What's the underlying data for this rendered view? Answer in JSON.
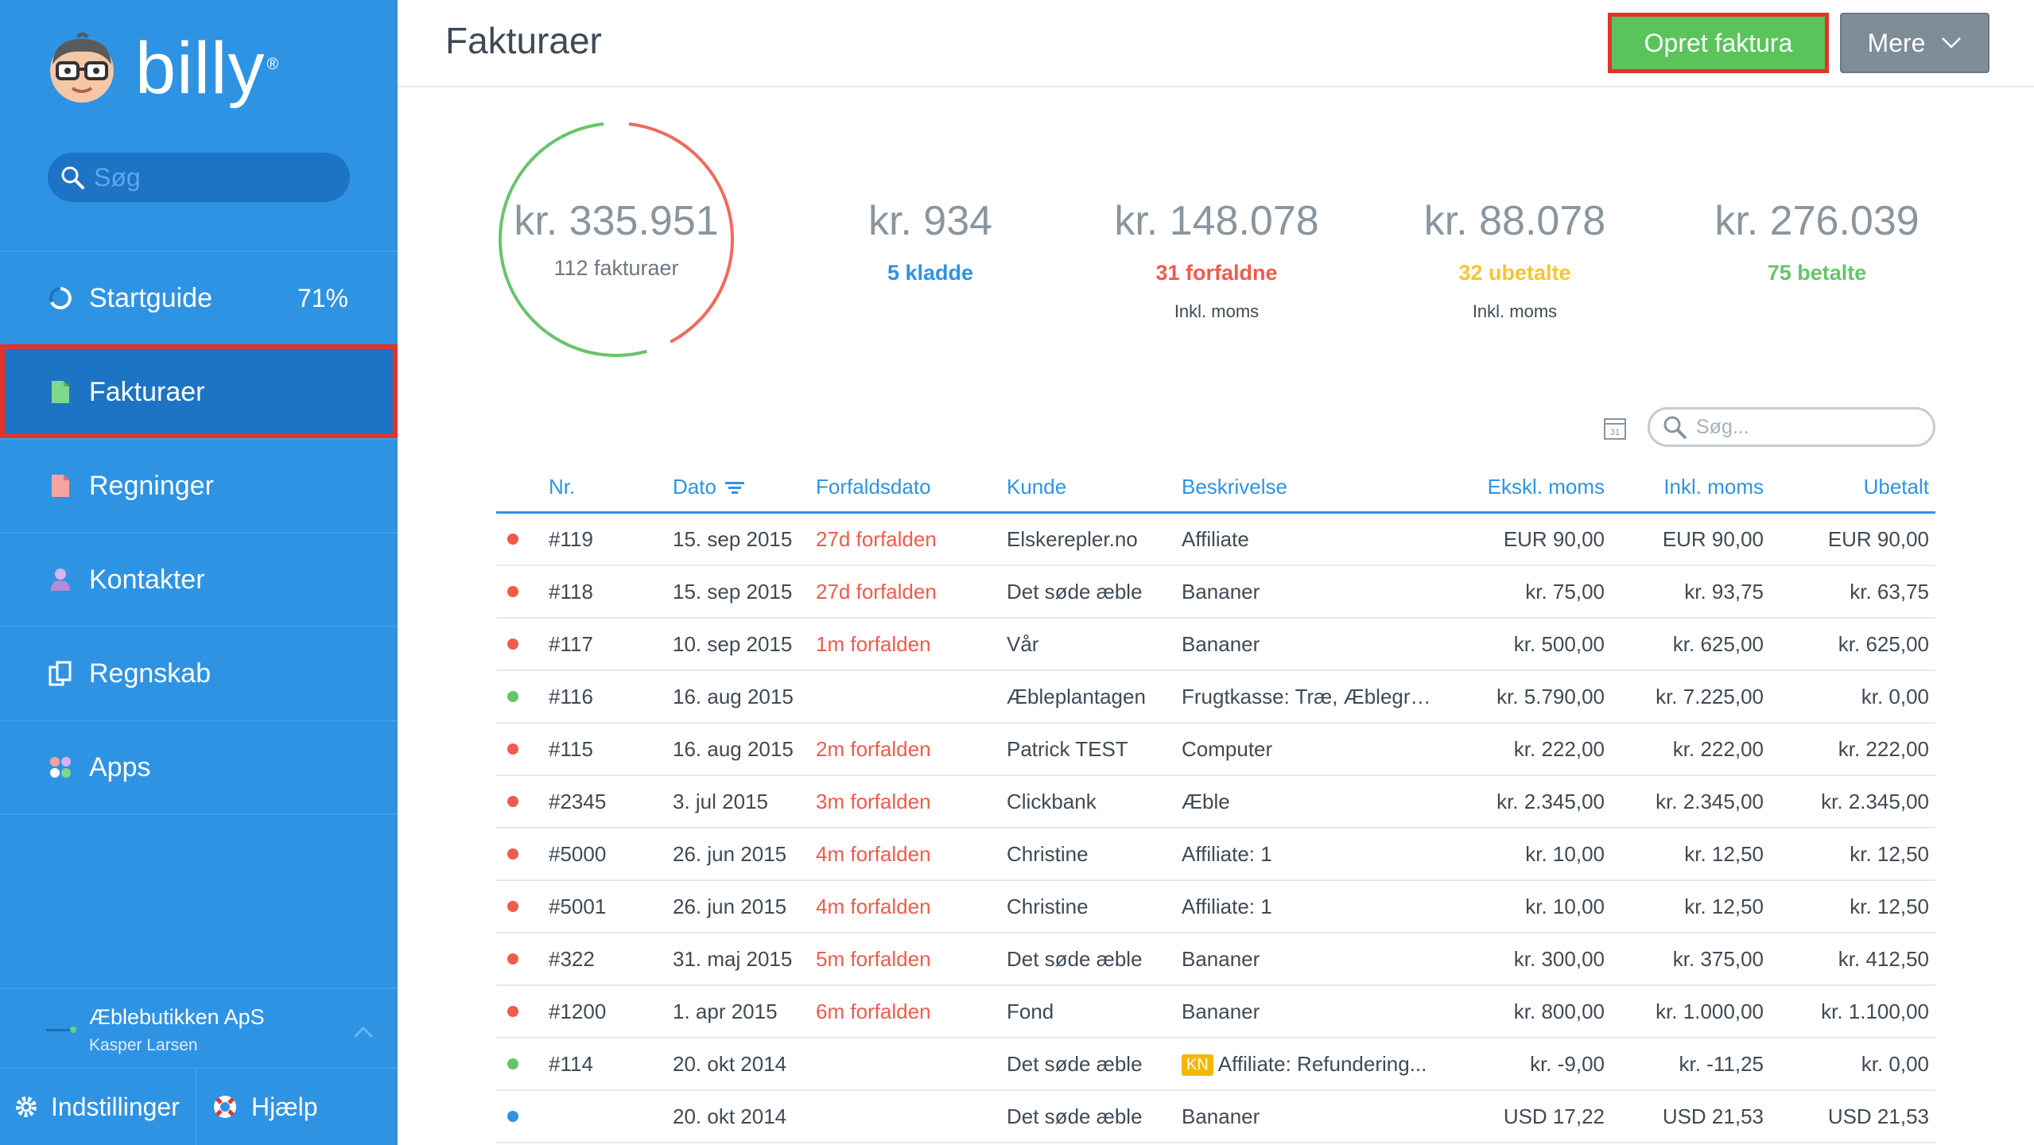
{
  "app": {
    "brand": "billy",
    "brand_mark": "®",
    "search_placeholder": "Søg"
  },
  "nav": {
    "items": [
      {
        "label": "Startguide",
        "icon": "progress-ring-icon",
        "extra": "71%"
      },
      {
        "label": "Fakturaer",
        "icon": "invoice-document-icon",
        "active": true
      },
      {
        "label": "Regninger",
        "icon": "bill-document-icon"
      },
      {
        "label": "Kontakter",
        "icon": "person-icon"
      },
      {
        "label": "Regnskab",
        "icon": "ledger-copy-icon"
      },
      {
        "label": "Apps",
        "icon": "apps-circles-icon"
      }
    ]
  },
  "org": {
    "name": "Æblebutikken ApS",
    "user": "Kasper Larsen"
  },
  "footer": {
    "settings_label": "Indstillinger",
    "help_label": "Hjælp"
  },
  "header": {
    "title": "Fakturaer",
    "create_label": "Opret faktura",
    "more_label": "Mere"
  },
  "stats": {
    "total": {
      "value": "kr. 335.951",
      "label": "112 fakturaer"
    },
    "draft": {
      "value": "kr. 934",
      "label": "5 kladde"
    },
    "overdue": {
      "value": "kr. 148.078",
      "label": "31 forfaldne",
      "sub": "Inkl. moms"
    },
    "unpaid": {
      "value": "kr. 88.078",
      "label": "32 ubetalte",
      "sub": "Inkl. moms"
    },
    "paid": {
      "value": "kr. 276.039",
      "label": "75 betalte"
    }
  },
  "donut": {
    "overdue_fraction": 0.44,
    "colors": {
      "overdue": "#ef6b5c",
      "paid": "#65c56a"
    }
  },
  "colors": {
    "primary": "#2f93e3",
    "draft": "#2f93e3",
    "overdue": "#ef5b4c",
    "unpaid": "#f5c531",
    "paid": "#65c56a"
  },
  "table": {
    "calendar_day": "31",
    "search_placeholder": "Søg...",
    "columns": {
      "nr": "Nr.",
      "date": "Dato",
      "due": "Forfaldsdato",
      "customer": "Kunde",
      "description": "Beskrivelse",
      "excl": "Ekskl. moms",
      "incl": "Inkl. moms",
      "unpaid": "Ubetalt"
    },
    "rows": [
      {
        "status": "overdue",
        "nr": "#119",
        "date": "15. sep 2015",
        "due": "27d forfalden",
        "customer": "Elskerepler.no",
        "badge": "",
        "description": "Affiliate",
        "excl": "EUR 90,00",
        "incl": "EUR 90,00",
        "unpaid": "EUR 90,00"
      },
      {
        "status": "overdue",
        "nr": "#118",
        "date": "15. sep 2015",
        "due": "27d forfalden",
        "customer": "Det søde æble",
        "badge": "",
        "description": "Bananer",
        "excl": "kr. 75,00",
        "incl": "kr. 93,75",
        "unpaid": "kr. 63,75"
      },
      {
        "status": "overdue",
        "nr": "#117",
        "date": "10. sep 2015",
        "due": "1m forfalden",
        "customer": "Vår",
        "badge": "",
        "description": "Bananer",
        "excl": "kr. 500,00",
        "incl": "kr. 625,00",
        "unpaid": "kr. 625,00"
      },
      {
        "status": "paid",
        "nr": "#116",
        "date": "16. aug 2015",
        "due": "",
        "customer": "Æbleplantagen",
        "badge": "",
        "description": "Frugtkasse: Træ, Æblegrønt...",
        "excl": "kr. 5.790,00",
        "incl": "kr. 7.225,00",
        "unpaid": "kr. 0,00"
      },
      {
        "status": "overdue",
        "nr": "#115",
        "date": "16. aug 2015",
        "due": "2m forfalden",
        "customer": "Patrick TEST",
        "badge": "",
        "description": "Computer",
        "excl": "kr. 222,00",
        "incl": "kr. 222,00",
        "unpaid": "kr. 222,00"
      },
      {
        "status": "overdue",
        "nr": "#2345",
        "date": "3. jul 2015",
        "due": "3m forfalden",
        "customer": "Clickbank",
        "badge": "",
        "description": "Æble",
        "excl": "kr. 2.345,00",
        "incl": "kr. 2.345,00",
        "unpaid": "kr. 2.345,00"
      },
      {
        "status": "overdue",
        "nr": "#5000",
        "date": "26. jun 2015",
        "due": "4m forfalden",
        "customer": "Christine",
        "badge": "",
        "description": "Affiliate: 1",
        "excl": "kr. 10,00",
        "incl": "kr. 12,50",
        "unpaid": "kr. 12,50"
      },
      {
        "status": "overdue",
        "nr": "#5001",
        "date": "26. jun 2015",
        "due": "4m forfalden",
        "customer": "Christine",
        "badge": "",
        "description": "Affiliate: 1",
        "excl": "kr. 10,00",
        "incl": "kr. 12,50",
        "unpaid": "kr. 12,50"
      },
      {
        "status": "overdue",
        "nr": "#322",
        "date": "31. maj 2015",
        "due": "5m forfalden",
        "customer": "Det søde æble",
        "badge": "",
        "description": "Bananer",
        "excl": "kr. 300,00",
        "incl": "kr. 375,00",
        "unpaid": "kr. 412,50"
      },
      {
        "status": "overdue",
        "nr": "#1200",
        "date": "1. apr 2015",
        "due": "6m forfalden",
        "customer": "Fond",
        "badge": "",
        "description": "Bananer",
        "excl": "kr. 800,00",
        "incl": "kr. 1.000,00",
        "unpaid": "kr. 1.100,00"
      },
      {
        "status": "paid",
        "nr": "#114",
        "date": "20. okt 2014",
        "due": "",
        "customer": "Det søde æble",
        "badge": "KN",
        "description": "Affiliate: Refundering...",
        "excl": "kr. -9,00",
        "incl": "kr. -11,25",
        "unpaid": "kr. 0,00"
      },
      {
        "status": "draft",
        "nr": "",
        "date": "20. okt 2014",
        "due": "",
        "customer": "Det søde æble",
        "badge": "",
        "description": "Bananer",
        "excl": "USD 17,22",
        "incl": "USD 21,53",
        "unpaid": "USD 21,53"
      }
    ]
  }
}
